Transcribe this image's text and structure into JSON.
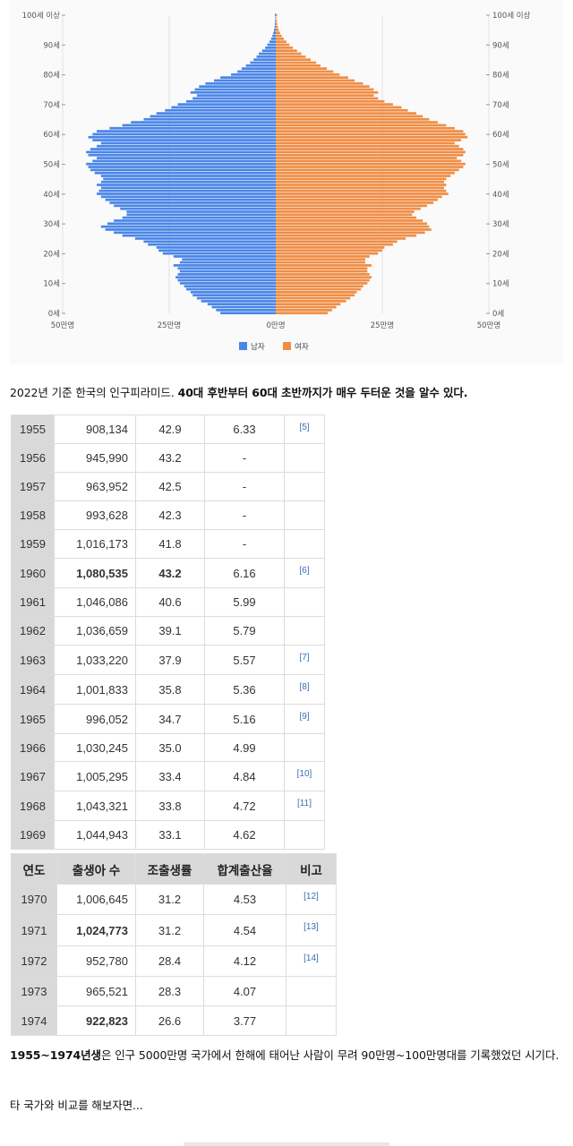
{
  "chart_data": {
    "type": "bar",
    "orientation": "horizontal-pyramid",
    "y_ticks": [
      "0세",
      "10세",
      "20세",
      "30세",
      "40세",
      "50세",
      "60세",
      "70세",
      "80세",
      "90세",
      "100세 이상"
    ],
    "x_ticks": [
      "50만명",
      "25만명",
      "0만명",
      "25만명",
      "50만명"
    ],
    "xlim": [
      -500000,
      500000
    ],
    "ages": [
      0,
      1,
      2,
      3,
      4,
      5,
      6,
      7,
      8,
      9,
      10,
      11,
      12,
      13,
      14,
      15,
      16,
      17,
      18,
      19,
      20,
      21,
      22,
      23,
      24,
      25,
      26,
      27,
      28,
      29,
      30,
      31,
      32,
      33,
      34,
      35,
      36,
      37,
      38,
      39,
      40,
      41,
      42,
      43,
      44,
      45,
      46,
      47,
      48,
      49,
      50,
      51,
      52,
      53,
      54,
      55,
      56,
      57,
      58,
      59,
      60,
      61,
      62,
      63,
      64,
      65,
      66,
      67,
      68,
      69,
      70,
      71,
      72,
      73,
      74,
      75,
      76,
      77,
      78,
      79,
      80,
      81,
      82,
      83,
      84,
      85,
      86,
      87,
      88,
      89,
      90,
      91,
      92,
      93,
      94,
      95,
      96,
      97,
      98,
      99,
      100
    ],
    "series": [
      {
        "name": "남자",
        "color": "#4a86e8",
        "values": [
          130000,
          140000,
          150000,
          160000,
          175000,
          185000,
          195000,
          200000,
          210000,
          215000,
          225000,
          230000,
          235000,
          230000,
          225000,
          230000,
          240000,
          225000,
          220000,
          240000,
          265000,
          275000,
          280000,
          300000,
          310000,
          330000,
          360000,
          380000,
          400000,
          410000,
          395000,
          380000,
          360000,
          350000,
          350000,
          365000,
          380000,
          390000,
          400000,
          410000,
          420000,
          415000,
          410000,
          420000,
          410000,
          405000,
          410000,
          425000,
          435000,
          440000,
          445000,
          430000,
          420000,
          440000,
          445000,
          435000,
          420000,
          410000,
          430000,
          440000,
          430000,
          420000,
          390000,
          360000,
          340000,
          310000,
          295000,
          280000,
          260000,
          245000,
          230000,
          210000,
          195000,
          185000,
          200000,
          190000,
          180000,
          165000,
          145000,
          130000,
          105000,
          90000,
          80000,
          70000,
          60000,
          52000,
          45000,
          40000,
          32000,
          25000,
          20000,
          15000,
          11000,
          8000,
          6000,
          4000,
          3000,
          2000,
          1500,
          1000,
          2000
        ]
      },
      {
        "name": "여자",
        "color": "#f08d44",
        "values": [
          122000,
          132000,
          142000,
          152000,
          165000,
          175000,
          185000,
          190000,
          200000,
          205000,
          215000,
          220000,
          225000,
          220000,
          215000,
          215000,
          225000,
          210000,
          210000,
          220000,
          240000,
          250000,
          255000,
          275000,
          285000,
          305000,
          330000,
          350000,
          365000,
          360000,
          355000,
          345000,
          330000,
          320000,
          325000,
          340000,
          355000,
          370000,
          380000,
          390000,
          405000,
          400000,
          395000,
          400000,
          395000,
          400000,
          410000,
          420000,
          430000,
          440000,
          445000,
          435000,
          425000,
          440000,
          445000,
          440000,
          430000,
          420000,
          435000,
          450000,
          445000,
          440000,
          420000,
          400000,
          380000,
          360000,
          345000,
          330000,
          310000,
          295000,
          275000,
          255000,
          240000,
          230000,
          240000,
          230000,
          220000,
          205000,
          185000,
          170000,
          150000,
          135000,
          120000,
          105000,
          95000,
          82000,
          70000,
          60000,
          50000,
          40000,
          32000,
          25000,
          19000,
          14000,
          10000,
          7000,
          5000,
          3500,
          2500,
          1500,
          3000
        ]
      }
    ],
    "legend_position": "bottom",
    "grid": true
  },
  "caption1": {
    "normal1": "2022년 기준 한국의 인구피라미드. ",
    "bold": "40대 후반부터 60대 초반까지가 매우 두터운 것을 알수 있다."
  },
  "table_top": [
    {
      "year": "1955",
      "births": "908,134",
      "cbr": "42.9",
      "tfr": "6.33",
      "ref": "[5]"
    },
    {
      "year": "1956",
      "births": "945,990",
      "cbr": "43.2",
      "tfr": "-",
      "ref": ""
    },
    {
      "year": "1957",
      "births": "963,952",
      "cbr": "42.5",
      "tfr": "-",
      "ref": ""
    },
    {
      "year": "1958",
      "births": "993,628",
      "cbr": "42.3",
      "tfr": "-",
      "ref": ""
    },
    {
      "year": "1959",
      "births": "1,016,173",
      "cbr": "41.8",
      "tfr": "-",
      "ref": ""
    },
    {
      "year": "1960",
      "births": "1,080,535",
      "cbr": "43.2",
      "tfr": "6.16",
      "ref": "[6]"
    },
    {
      "year": "1961",
      "births": "1,046,086",
      "cbr": "40.6",
      "tfr": "5.99",
      "ref": ""
    },
    {
      "year": "1962",
      "births": "1,036,659",
      "cbr": "39.1",
      "tfr": "5.79",
      "ref": ""
    },
    {
      "year": "1963",
      "births": "1,033,220",
      "cbr": "37.9",
      "tfr": "5.57",
      "ref": "[7]"
    },
    {
      "year": "1964",
      "births": "1,001,833",
      "cbr": "35.8",
      "tfr": "5.36",
      "ref": "[8]"
    },
    {
      "year": "1965",
      "births": "996,052",
      "cbr": "34.7",
      "tfr": "5.16",
      "ref": "[9]"
    },
    {
      "year": "1966",
      "births": "1,030,245",
      "cbr": "35.0",
      "tfr": "4.99",
      "ref": ""
    },
    {
      "year": "1967",
      "births": "1,005,295",
      "cbr": "33.4",
      "tfr": "4.84",
      "ref": "[10]"
    },
    {
      "year": "1968",
      "births": "1,043,321",
      "cbr": "33.8",
      "tfr": "4.72",
      "ref": "[11]"
    },
    {
      "year": "1969",
      "births": "1,044,943",
      "cbr": "33.1",
      "tfr": "4.62",
      "ref": ""
    }
  ],
  "table_bottom_headers": [
    "연도",
    "출생아 수",
    "조출생률",
    "합계출산율",
    "비고"
  ],
  "table_bottom": [
    {
      "year": "1970",
      "births": "1,006,645",
      "cbr": "31.2",
      "tfr": "4.53",
      "ref": "[12]"
    },
    {
      "year": "1971",
      "births": "1,024,773",
      "cbr": "31.2",
      "tfr": "4.54",
      "ref": "[13]"
    },
    {
      "year": "1972",
      "births": "952,780",
      "cbr": "28.4",
      "tfr": "4.12",
      "ref": "[14]"
    },
    {
      "year": "1973",
      "births": "965,521",
      "cbr": "28.3",
      "tfr": "4.07",
      "ref": ""
    },
    {
      "year": "1974",
      "births": "922,823",
      "cbr": "26.6",
      "tfr": "3.77",
      "ref": ""
    }
  ],
  "caption2": {
    "bold": "1955~1974년생",
    "normal": "은 인구 5000만명 국가에서 한해에 태어난 사람이 무려 90만명~100만명대를 기록했었던 시기다."
  },
  "caption3": "타 국가와 비교를 해보자면..."
}
